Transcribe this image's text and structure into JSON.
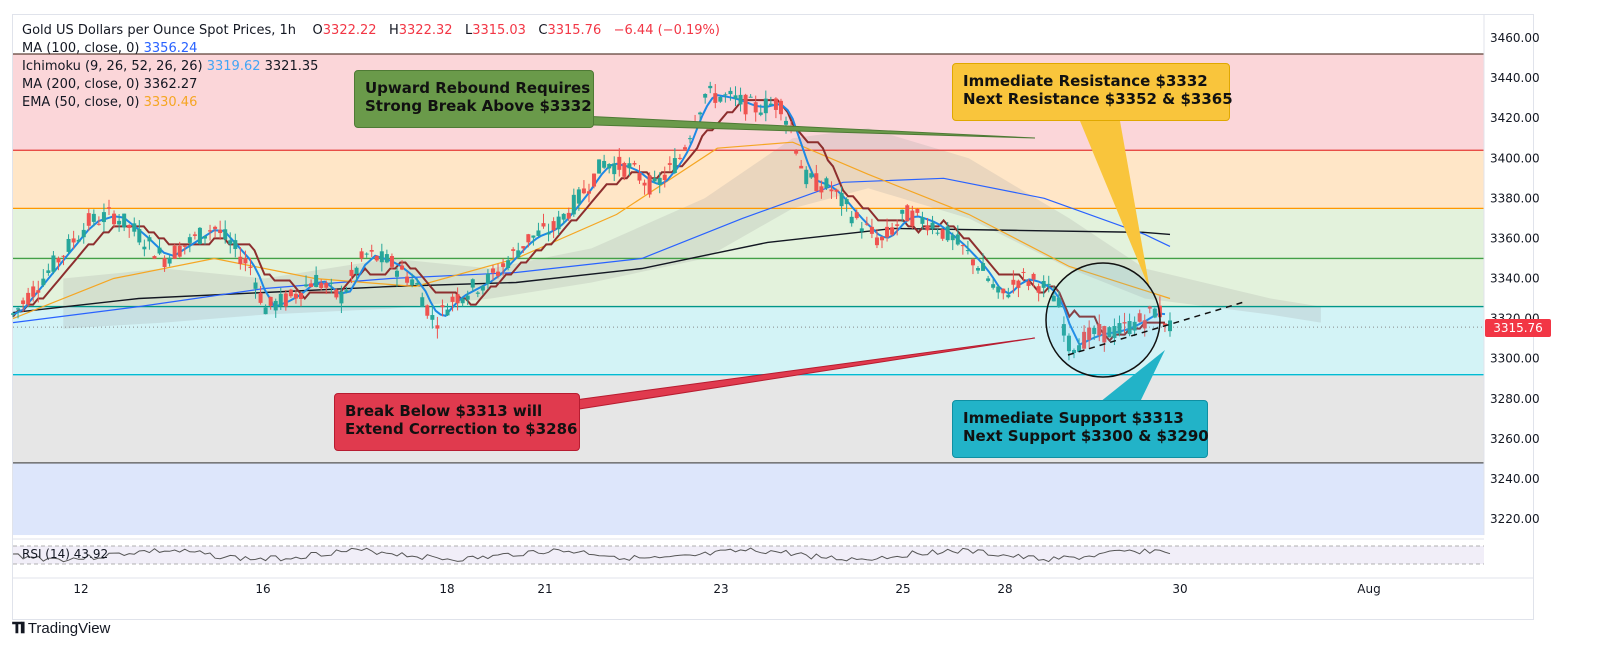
{
  "header": {
    "title": "Gold US Dollars per Ounce Spot Prices, 1h",
    "open_label": "O",
    "open": "3322.22",
    "high_label": "H",
    "high": "3322.32",
    "low_label": "L",
    "low": "3315.03",
    "close_label": "C",
    "close": "3315.76",
    "change": "−6.44 (−0.19%)"
  },
  "indicators": [
    {
      "label": "MA (100, close, 0)",
      "value": "3356.24",
      "color": "#2962ff"
    },
    {
      "label": "Ichimoku (9, 26, 52, 26, 26)",
      "value": "3319.62",
      "value2": "3321.35",
      "color": "#42a5f5"
    },
    {
      "label": "MA (200, close, 0)",
      "value": "3362.27",
      "color": "#131722"
    },
    {
      "label": "EMA (50, close, 0)",
      "value": "3330.46",
      "color": "#f5a623"
    }
  ],
  "rsi": {
    "label": "RSI (14)",
    "value": "43.92"
  },
  "price_tag": "3315.76",
  "brand": "TradingView",
  "callouts": {
    "rebound": [
      "Upward Rebound Requires",
      "Strong Break Above $3332"
    ],
    "resistance": [
      "Immediate Resistance $3332",
      "Next Resistance $3352 & $3365"
    ],
    "break_below": [
      "Break Below $3313 will",
      "Extend Correction to $3286"
    ],
    "support": [
      "Immediate Support $3313",
      "Next Support $3300 & $3290"
    ]
  },
  "colors": {
    "bull": "#26a69a",
    "bear": "#ef5350",
    "resistance_line": "#e53935",
    "level_orange": "#ff9800",
    "level_green": "#43a047",
    "level_teal": "#009688",
    "level_cyan": "#00bcd4",
    "zone_red": "#fbd6d9",
    "zone_orange": "#ffe6c7",
    "zone_green": "#e3f2dc",
    "zone_cyan": "#d3f3f6",
    "zone_grey": "#e6e6e6",
    "zone_blue": "#dde6fb",
    "callout_green": "#6a9a4a",
    "callout_yellow": "#f9c53c",
    "callout_red": "#e03a4e",
    "callout_cyan": "#22b3c8"
  },
  "chart_data": {
    "type": "candlestick",
    "title": "Gold US Dollars per Ounce Spot Prices, 1h",
    "y_ticks": [
      3460,
      3440,
      3420,
      3400,
      3380,
      3360,
      3340,
      3320,
      3300,
      3280,
      3260,
      3240,
      3220
    ],
    "ylim": [
      3208,
      3470
    ],
    "x_ticks": [
      "12",
      "16",
      "18",
      "21",
      "23",
      "25",
      "28",
      "30",
      "Aug"
    ],
    "horizontal_levels": [
      3452,
      3404,
      3375,
      3350,
      3326,
      3292,
      3248
    ],
    "current_price": 3315.76,
    "price_path": [
      [
        0,
        3322
      ],
      [
        0.03,
        3345
      ],
      [
        0.06,
        3368
      ],
      [
        0.08,
        3372
      ],
      [
        0.1,
        3362
      ],
      [
        0.12,
        3350
      ],
      [
        0.14,
        3358
      ],
      [
        0.16,
        3366
      ],
      [
        0.19,
        3345
      ],
      [
        0.2,
        3325
      ],
      [
        0.22,
        3330
      ],
      [
        0.24,
        3340
      ],
      [
        0.26,
        3330
      ],
      [
        0.28,
        3352
      ],
      [
        0.3,
        3348
      ],
      [
        0.32,
        3338
      ],
      [
        0.335,
        3318
      ],
      [
        0.35,
        3330
      ],
      [
        0.38,
        3340
      ],
      [
        0.41,
        3360
      ],
      [
        0.43,
        3365
      ],
      [
        0.45,
        3380
      ],
      [
        0.47,
        3398
      ],
      [
        0.49,
        3395
      ],
      [
        0.51,
        3385
      ],
      [
        0.53,
        3400
      ],
      [
        0.55,
        3432
      ],
      [
        0.57,
        3430
      ],
      [
        0.59,
        3425
      ],
      [
        0.61,
        3428
      ],
      [
        0.62,
        3412
      ],
      [
        0.63,
        3390
      ],
      [
        0.65,
        3385
      ],
      [
        0.67,
        3370
      ],
      [
        0.69,
        3358
      ],
      [
        0.71,
        3372
      ],
      [
        0.73,
        3368
      ],
      [
        0.75,
        3358
      ],
      [
        0.77,
        3345
      ],
      [
        0.785,
        3330
      ],
      [
        0.8,
        3340
      ],
      [
        0.815,
        3338
      ],
      [
        0.83,
        3330
      ],
      [
        0.84,
        3306
      ],
      [
        0.86,
        3312
      ],
      [
        0.88,
        3314
      ],
      [
        0.9,
        3320
      ],
      [
        0.91,
        3325
      ],
      [
        0.92,
        3316
      ]
    ]
  }
}
